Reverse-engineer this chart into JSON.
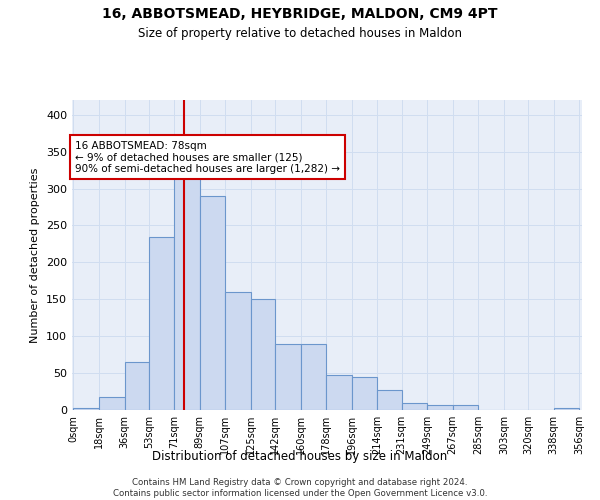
{
  "title_line1": "16, ABBOTSMEAD, HEYBRIDGE, MALDON, CM9 4PT",
  "title_line2": "Size of property relative to detached houses in Maldon",
  "xlabel": "Distribution of detached houses by size in Maldon",
  "ylabel": "Number of detached properties",
  "bin_labels": [
    "0sqm",
    "18sqm",
    "36sqm",
    "53sqm",
    "71sqm",
    "89sqm",
    "107sqm",
    "125sqm",
    "142sqm",
    "160sqm",
    "178sqm",
    "196sqm",
    "214sqm",
    "231sqm",
    "249sqm",
    "267sqm",
    "285sqm",
    "303sqm",
    "320sqm",
    "338sqm",
    "356sqm"
  ],
  "bar_values": [
    3,
    18,
    65,
    235,
    325,
    290,
    160,
    150,
    90,
    90,
    47,
    45,
    27,
    10,
    7,
    7,
    0,
    0,
    0,
    3
  ],
  "bar_color": "#ccd9f0",
  "bar_edge_color": "#6b96cc",
  "vline_x": 78,
  "vline_color": "#cc0000",
  "annotation_text": "16 ABBOTSMEAD: 78sqm\n← 9% of detached houses are smaller (125)\n90% of semi-detached houses are larger (1,282) →",
  "annotation_box_color": "#ffffff",
  "annotation_box_edge": "#cc0000",
  "ylim": [
    0,
    420
  ],
  "yticks": [
    0,
    50,
    100,
    150,
    200,
    250,
    300,
    350,
    400
  ],
  "grid_color": "#d0ddf0",
  "background_color": "#e8eef8",
  "footer_text": "Contains HM Land Registry data © Crown copyright and database right 2024.\nContains public sector information licensed under the Open Government Licence v3.0.",
  "bin_edges": [
    0,
    18,
    36,
    53,
    71,
    89,
    107,
    125,
    142,
    160,
    178,
    196,
    214,
    231,
    249,
    267,
    285,
    303,
    320,
    338,
    356
  ]
}
